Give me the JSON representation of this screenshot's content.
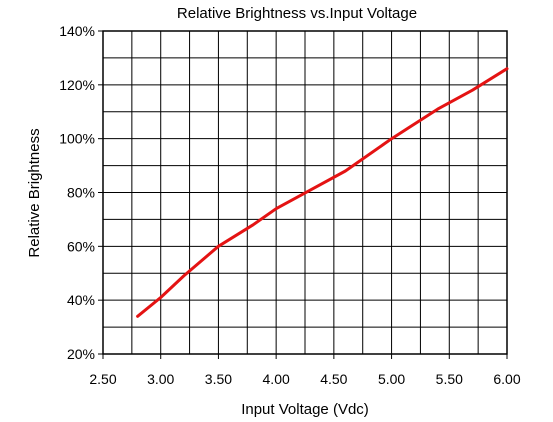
{
  "chart_data": {
    "type": "line",
    "title": "Relative Brightness vs.Input Voltage",
    "xlabel": "Input Voltage (Vdc)",
    "ylabel": "Relative Brightness",
    "xlim": [
      2.5,
      6.0
    ],
    "ylim": [
      20,
      140
    ],
    "x_ticks": [
      2.5,
      3.0,
      3.5,
      4.0,
      4.5,
      5.0,
      5.5,
      6.0
    ],
    "x_tick_labels": [
      "2.50",
      "3.00",
      "3.50",
      "4.00",
      "4.50",
      "5.00",
      "5.50",
      "6.00"
    ],
    "y_ticks": [
      20,
      40,
      60,
      80,
      100,
      120,
      140
    ],
    "y_tick_labels": [
      "20%",
      "40%",
      "60%",
      "80%",
      "100%",
      "120%",
      "140%"
    ],
    "x_minor_step": 0.25,
    "y_minor_step": 10,
    "grid": true,
    "series": [
      {
        "color": "#e41313",
        "x": [
          2.8,
          3.0,
          3.2,
          3.5,
          3.8,
          4.0,
          4.3,
          4.6,
          5.0,
          5.4,
          5.7,
          6.0
        ],
        "y": [
          34,
          41,
          49,
          60,
          68,
          74,
          81,
          88,
          100,
          111,
          118,
          126
        ]
      }
    ]
  }
}
